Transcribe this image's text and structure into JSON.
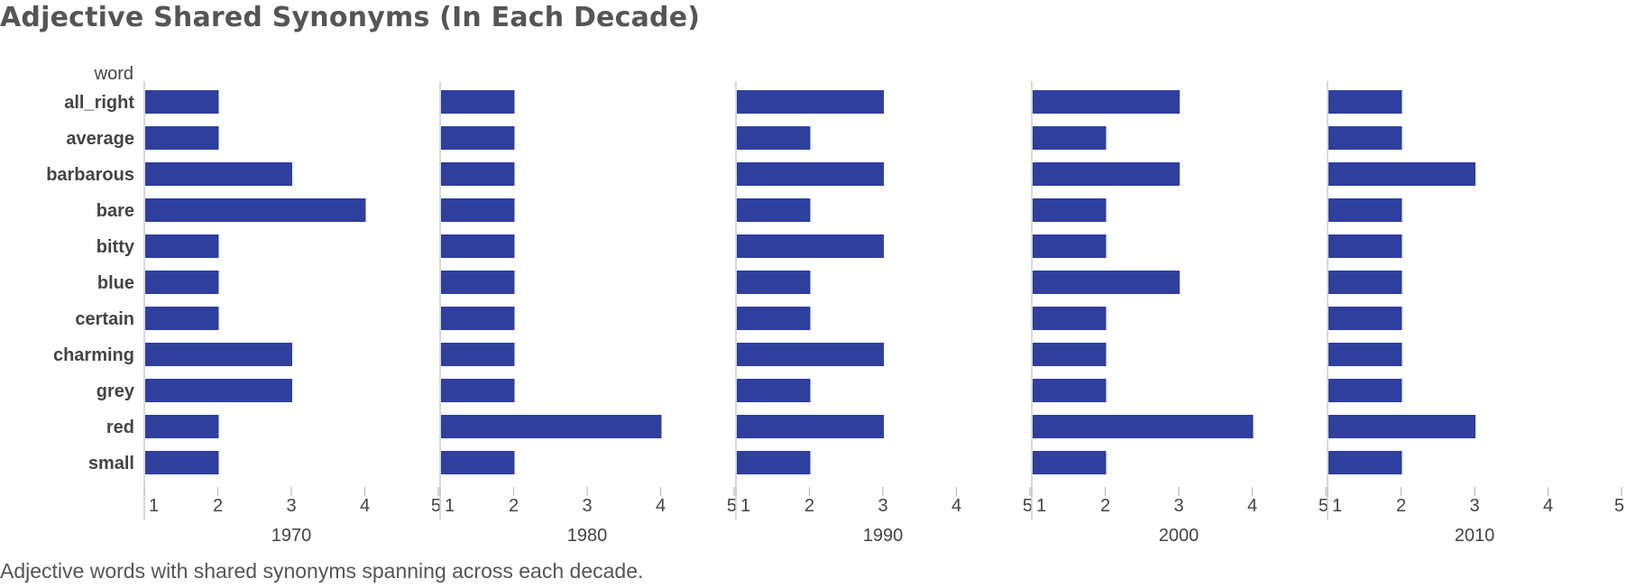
{
  "title": "Adjective Shared Synonyms (In Each Decade)",
  "caption": "Adjective words with shared synonyms spanning across each decade.",
  "accent_color": "#2f3f9e",
  "chart_data": {
    "type": "bar",
    "orientation": "horizontal",
    "ylabel": "word",
    "categories": [
      "all_right",
      "average",
      "barbarous",
      "bare",
      "bitty",
      "blue",
      "certain",
      "charming",
      "grey",
      "red",
      "small"
    ],
    "xticks": [
      1,
      2,
      3,
      4,
      5
    ],
    "xlim": [
      1,
      5
    ],
    "series": [
      {
        "name": "1970",
        "values": [
          2,
          2,
          3,
          4,
          2,
          2,
          2,
          3,
          3,
          2,
          2
        ]
      },
      {
        "name": "1980",
        "values": [
          2,
          2,
          2,
          2,
          2,
          2,
          2,
          2,
          2,
          4,
          2
        ]
      },
      {
        "name": "1990",
        "values": [
          3,
          2,
          3,
          2,
          3,
          2,
          2,
          3,
          2,
          3,
          2
        ]
      },
      {
        "name": "2000",
        "values": [
          3,
          2,
          3,
          2,
          2,
          3,
          2,
          2,
          2,
          4,
          2
        ]
      },
      {
        "name": "2010",
        "values": [
          2,
          2,
          3,
          2,
          2,
          2,
          2,
          2,
          2,
          3,
          2
        ]
      }
    ],
    "grid": false,
    "legend": "none"
  }
}
